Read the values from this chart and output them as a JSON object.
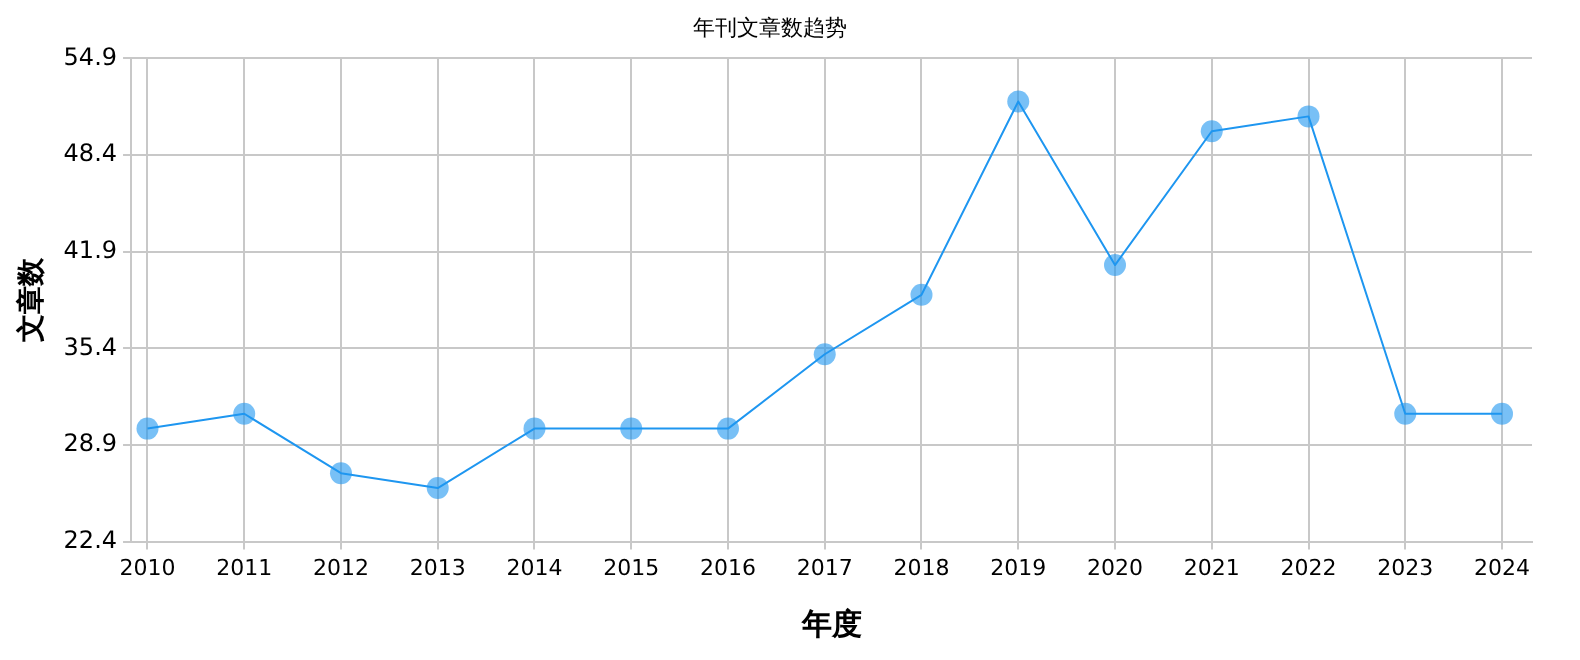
{
  "chart_data": {
    "type": "line",
    "title": "年刊文章数趋势",
    "xlabel": "年度",
    "ylabel": "文章数",
    "x": [
      2010,
      2011,
      2012,
      2013,
      2014,
      2015,
      2016,
      2017,
      2018,
      2019,
      2020,
      2021,
      2022,
      2023,
      2024
    ],
    "series": [
      {
        "color": "#1e96f0",
        "values": [
          30,
          31,
          27,
          26,
          30,
          30,
          30,
          35,
          39,
          52,
          41,
          50,
          51,
          31,
          31
        ]
      }
    ],
    "xlim": [
      2009.83,
      2024.31
    ],
    "xticks": [
      2010,
      2011,
      2012,
      2013,
      2014,
      2015,
      2016,
      2017,
      2018,
      2019,
      2020,
      2021,
      2022,
      2023,
      2024
    ],
    "ylim": [
      22.4,
      54.9
    ],
    "yticks": [
      22.4,
      28.9,
      35.4,
      41.9,
      48.4,
      54.9
    ],
    "grid": true,
    "legend": false,
    "marker": "circle",
    "line_style": "solid"
  }
}
